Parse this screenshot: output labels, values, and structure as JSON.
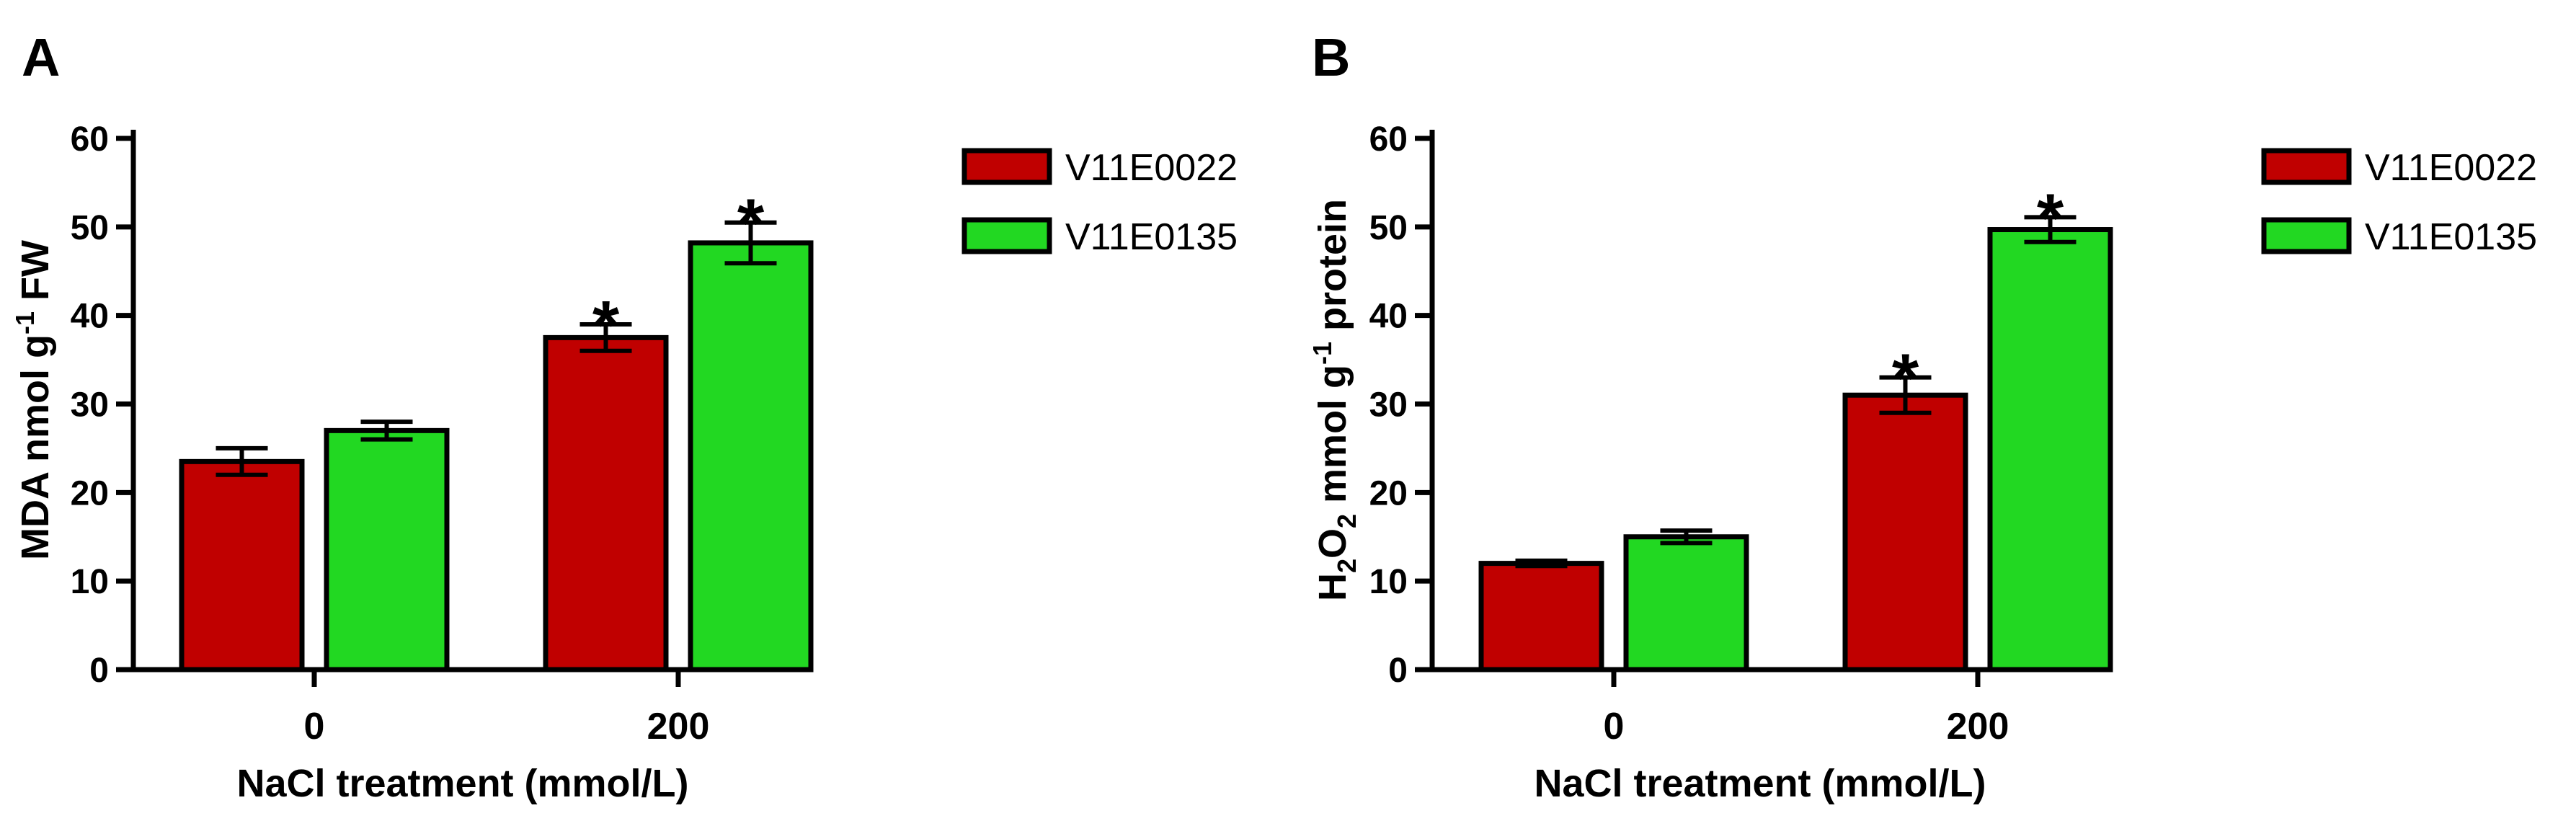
{
  "chart_data": [
    {
      "type": "bar",
      "panel": "A",
      "categories": [
        "0",
        "200"
      ],
      "series": [
        {
          "name": "V11E0022",
          "values": [
            23.5,
            37.5
          ],
          "errors": [
            1.5,
            1.5
          ],
          "sig": [
            "",
            "*"
          ]
        },
        {
          "name": "V11E0135",
          "values": [
            27.0,
            48.2
          ],
          "errors": [
            1.0,
            2.3
          ],
          "sig": [
            "",
            "*"
          ]
        }
      ],
      "ylabel": {
        "main": "MDA nmol g",
        "sup": "-1",
        "tail": " FW"
      },
      "xlabel": "NaCl treatment (mmol/L)",
      "ylim": [
        0,
        60
      ],
      "yticks": [
        "0",
        "10",
        "20",
        "30",
        "40",
        "50",
        "60"
      ],
      "legend": "right",
      "grid": false
    },
    {
      "type": "bar",
      "panel": "B",
      "categories": [
        "0",
        "200"
      ],
      "series": [
        {
          "name": "V11E0022",
          "values": [
            12.0,
            31.0
          ],
          "errors": [
            0.3,
            2.0
          ],
          "sig": [
            "",
            "*"
          ]
        },
        {
          "name": "V11E0135",
          "values": [
            15.0,
            49.7
          ],
          "errors": [
            0.7,
            1.4
          ],
          "sig": [
            "",
            "*"
          ]
        }
      ],
      "ylabel": {
        "p1": "H",
        "s1": "2",
        "p2": "O",
        "s2": "2",
        "p3": " mmol g",
        "sup": "-1",
        "tail": " protein"
      },
      "xlabel": "NaCl treatment (mmol/L)",
      "ylim": [
        0,
        60
      ],
      "yticks": [
        "0",
        "10",
        "20",
        "30",
        "40",
        "50",
        "60"
      ],
      "legend": "right",
      "grid": false
    }
  ],
  "colors": {
    "series_0": "#c00000",
    "series_1": "#22d822",
    "edge": "#000000"
  }
}
